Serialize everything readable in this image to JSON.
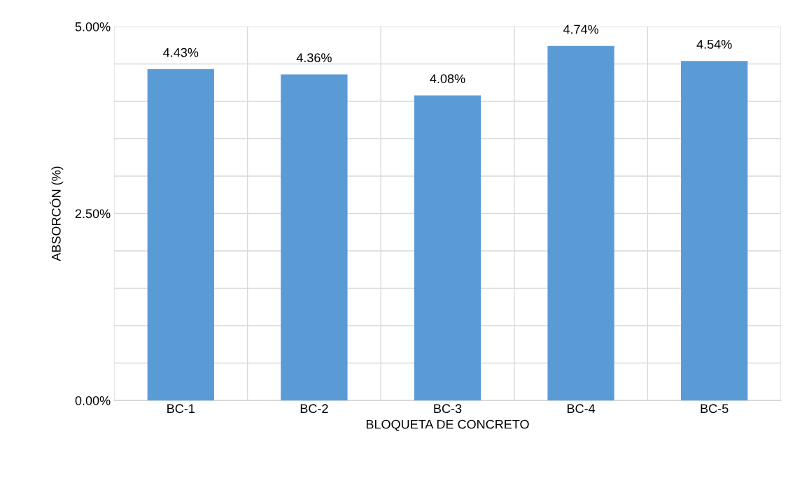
{
  "chart_data": {
    "type": "bar",
    "xlabel": "BLOQUETA DE CONCRETO",
    "ylabel": "ABSORCÓN (%)",
    "categories": [
      "BC-1",
      "BC-2",
      "BC-3",
      "BC-4",
      "BC-5"
    ],
    "values": [
      4.43,
      4.36,
      4.08,
      4.74,
      4.54
    ],
    "value_labels": [
      "4.43%",
      "4.36%",
      "4.08%",
      "4.74%",
      "4.54%"
    ],
    "color": "#5b9bd5",
    "ylim": [
      0,
      5
    ],
    "yticks": [
      {
        "value": 0,
        "label": "0.00%"
      },
      {
        "value": 0.5,
        "label": null
      },
      {
        "value": 1,
        "label": null
      },
      {
        "value": 1.5,
        "label": null
      },
      {
        "value": 2,
        "label": null
      },
      {
        "value": 2.5,
        "label": "2.50%"
      },
      {
        "value": 3,
        "label": null
      },
      {
        "value": 3.5,
        "label": null
      },
      {
        "value": 4,
        "label": null
      },
      {
        "value": 4.5,
        "label": null
      },
      {
        "value": 5,
        "label": "5.00%"
      }
    ],
    "grid": true
  }
}
